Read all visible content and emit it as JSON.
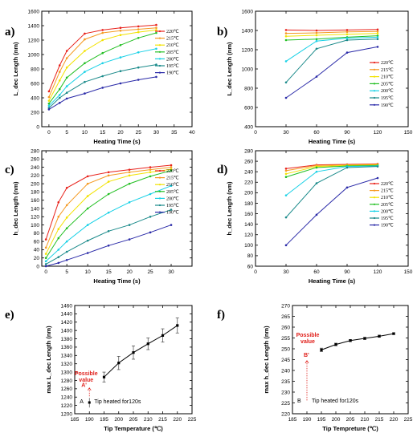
{
  "chart_data": [
    {
      "id": "a",
      "panel_label": "a)",
      "type": "line",
      "xlabel": "Heating Time (s)",
      "ylabel": "L_dec Length (nm)",
      "xlim": [
        -2,
        40
      ],
      "ylim": [
        0,
        1600
      ],
      "xticks": [
        0,
        5,
        10,
        15,
        20,
        25,
        30,
        35,
        40
      ],
      "yticks": [
        0,
        200,
        400,
        600,
        800,
        1000,
        1200,
        1400,
        1600
      ],
      "legend_position": "right",
      "series": [
        {
          "name": "220℃",
          "color": "#e8221b",
          "x": [
            0,
            3,
            5,
            10,
            15,
            20,
            25,
            30
          ],
          "y": [
            490,
            850,
            1050,
            1290,
            1340,
            1370,
            1390,
            1410
          ]
        },
        {
          "name": "215℃",
          "color": "#f59a23",
          "x": [
            0,
            3,
            5,
            10,
            15,
            20,
            25,
            30
          ],
          "y": [
            410,
            760,
            950,
            1210,
            1300,
            1330,
            1350,
            1370
          ]
        },
        {
          "name": "210℃",
          "color": "#f2e200",
          "x": [
            0,
            3,
            5,
            10,
            15,
            20,
            25,
            30
          ],
          "y": [
            360,
            640,
            820,
            1050,
            1200,
            1270,
            1310,
            1340
          ]
        },
        {
          "name": "205℃",
          "color": "#22bf22",
          "x": [
            0,
            3,
            5,
            10,
            15,
            20,
            25,
            30
          ],
          "y": [
            320,
            520,
            680,
            880,
            1020,
            1130,
            1230,
            1300
          ]
        },
        {
          "name": "200℃",
          "color": "#19d1e6",
          "x": [
            0,
            3,
            5,
            10,
            15,
            20,
            25,
            30
          ],
          "y": [
            290,
            440,
            560,
            760,
            880,
            960,
            1030,
            1080
          ]
        },
        {
          "name": "195℃",
          "color": "#1a8a8a",
          "x": [
            0,
            3,
            5,
            10,
            15,
            20,
            25,
            30
          ],
          "y": [
            260,
            400,
            470,
            620,
            700,
            770,
            820,
            860
          ]
        },
        {
          "name": "190℃",
          "color": "#2a2aa8",
          "x": [
            0,
            3,
            5,
            10,
            15,
            20,
            25,
            30
          ],
          "y": [
            240,
            330,
            390,
            460,
            540,
            600,
            650,
            690
          ]
        }
      ]
    },
    {
      "id": "b",
      "panel_label": "b)",
      "type": "line",
      "xlabel": "Heating Time (s)",
      "ylabel": "L_dec Length (nm)",
      "xlim": [
        0,
        150
      ],
      "ylim": [
        400,
        1600
      ],
      "xticks": [
        0,
        30,
        60,
        90,
        120,
        150
      ],
      "yticks": [
        400,
        600,
        800,
        1000,
        1200,
        1400,
        1600
      ],
      "legend_position": "right",
      "series": [
        {
          "name": "220℃",
          "color": "#e8221b",
          "x": [
            30,
            60,
            90,
            120
          ],
          "y": [
            1405,
            1400,
            1405,
            1410
          ]
        },
        {
          "name": "215℃",
          "color": "#f59a23",
          "x": [
            30,
            60,
            90,
            120
          ],
          "y": [
            1370,
            1375,
            1385,
            1390
          ]
        },
        {
          "name": "210℃",
          "color": "#f2e200",
          "x": [
            30,
            60,
            90,
            120
          ],
          "y": [
            1340,
            1350,
            1360,
            1370
          ]
        },
        {
          "name": "205℃",
          "color": "#22bf22",
          "x": [
            30,
            60,
            90,
            120
          ],
          "y": [
            1300,
            1310,
            1330,
            1345
          ]
        },
        {
          "name": "200℃",
          "color": "#19d1e6",
          "x": [
            30,
            60,
            90,
            120
          ],
          "y": [
            1080,
            1290,
            1320,
            1330
          ]
        },
        {
          "name": "195℃",
          "color": "#1a8a8a",
          "x": [
            30,
            60,
            90,
            120
          ],
          "y": [
            860,
            1210,
            1300,
            1310
          ]
        },
        {
          "name": "190℃",
          "color": "#2a2aa8",
          "x": [
            30,
            60,
            90,
            120
          ],
          "y": [
            700,
            920,
            1170,
            1230
          ]
        }
      ]
    },
    {
      "id": "c",
      "panel_label": "c)",
      "type": "line",
      "xlabel": "Heating Time (s)",
      "ylabel": "h_dec Length (nm)",
      "xlim": [
        -1,
        35
      ],
      "ylim": [
        0,
        280
      ],
      "xticks": [
        0,
        5,
        10,
        15,
        20,
        25,
        30
      ],
      "yticks": [
        0,
        20,
        40,
        60,
        80,
        100,
        120,
        140,
        160,
        180,
        200,
        220,
        240,
        260,
        280
      ],
      "legend_position": "right",
      "series": [
        {
          "name": "220℃",
          "color": "#e8221b",
          "x": [
            0,
            3,
            5,
            10,
            15,
            20,
            25,
            30
          ],
          "y": [
            65,
            155,
            190,
            218,
            228,
            234,
            240,
            245
          ]
        },
        {
          "name": "215℃",
          "color": "#f59a23",
          "x": [
            0,
            3,
            5,
            10,
            15,
            20,
            25,
            30
          ],
          "y": [
            45,
            120,
            148,
            200,
            220,
            228,
            234,
            240
          ]
        },
        {
          "name": "210℃",
          "color": "#f2e200",
          "x": [
            0,
            3,
            5,
            10,
            15,
            20,
            25,
            30
          ],
          "y": [
            30,
            90,
            118,
            170,
            205,
            220,
            228,
            235
          ]
        },
        {
          "name": "205℃",
          "color": "#22bf22",
          "x": [
            0,
            3,
            5,
            10,
            15,
            20,
            25,
            30
          ],
          "y": [
            20,
            68,
            92,
            140,
            175,
            200,
            218,
            232
          ]
        },
        {
          "name": "200℃",
          "color": "#19d1e6",
          "x": [
            0,
            3,
            5,
            10,
            15,
            20,
            25,
            30
          ],
          "y": [
            12,
            40,
            60,
            100,
            130,
            155,
            175,
            195
          ]
        },
        {
          "name": "195℃",
          "color": "#1a8a8a",
          "x": [
            0,
            3,
            5,
            10,
            15,
            20,
            25,
            30
          ],
          "y": [
            5,
            22,
            35,
            62,
            85,
            100,
            120,
            137
          ]
        },
        {
          "name": "190℃",
          "color": "#2a2aa8",
          "x": [
            0,
            3,
            5,
            10,
            15,
            20,
            25,
            30
          ],
          "y": [
            0,
            8,
            15,
            32,
            50,
            65,
            82,
            100
          ]
        }
      ]
    },
    {
      "id": "d",
      "panel_label": "d)",
      "type": "line",
      "xlabel": "Heating Time (s)",
      "ylabel": "h_dec Length (nm)",
      "xlim": [
        0,
        150
      ],
      "ylim": [
        60,
        280
      ],
      "xticks": [
        0,
        30,
        60,
        90,
        120,
        150
      ],
      "yticks": [
        60,
        80,
        100,
        120,
        140,
        160,
        180,
        200,
        220,
        240,
        260,
        280
      ],
      "legend_position": "right",
      "series": [
        {
          "name": "220℃",
          "color": "#e8221b",
          "x": [
            30,
            60,
            90,
            120
          ],
          "y": [
            246,
            253,
            254,
            255
          ]
        },
        {
          "name": "215℃",
          "color": "#f59a23",
          "x": [
            30,
            60,
            90,
            120
          ],
          "y": [
            242,
            252,
            253,
            254
          ]
        },
        {
          "name": "210℃",
          "color": "#f2e200",
          "x": [
            30,
            60,
            90,
            120
          ],
          "y": [
            236,
            250,
            252,
            253
          ]
        },
        {
          "name": "205℃",
          "color": "#22bf22",
          "x": [
            30,
            60,
            90,
            120
          ],
          "y": [
            230,
            248,
            251,
            252
          ]
        },
        {
          "name": "200℃",
          "color": "#19d1e6",
          "x": [
            30,
            60,
            90,
            120
          ],
          "y": [
            195,
            240,
            250,
            251
          ]
        },
        {
          "name": "195℃",
          "color": "#1a8a8a",
          "x": [
            30,
            60,
            90,
            120
          ],
          "y": [
            153,
            218,
            248,
            250
          ]
        },
        {
          "name": "190℃",
          "color": "#2a2aa8",
          "x": [
            30,
            60,
            90,
            120
          ],
          "y": [
            100,
            158,
            210,
            228
          ]
        }
      ]
    },
    {
      "id": "e",
      "panel_label": "e)",
      "type": "line",
      "xlabel": "Tip Temperature (℃)",
      "ylabel": "max L_dec Length (nm)",
      "xlim": [
        185,
        225
      ],
      "ylim": [
        1200,
        1460
      ],
      "xticks": [
        185,
        190,
        195,
        200,
        205,
        210,
        215,
        220,
        225
      ],
      "yticks": [
        1200,
        1220,
        1240,
        1260,
        1280,
        1300,
        1320,
        1340,
        1360,
        1380,
        1400,
        1420,
        1440,
        1460
      ],
      "series": [
        {
          "x": [
            195,
            200,
            205,
            210,
            215,
            220
          ],
          "y": [
            1288,
            1322,
            1347,
            1368,
            1388,
            1412
          ],
          "err": [
            12,
            16,
            16,
            14,
            16,
            18
          ]
        }
      ],
      "annotations": {
        "possible": "Possible value",
        "marker": "A'",
        "point": "A",
        "note": "Tip heated for120s"
      }
    },
    {
      "id": "f",
      "panel_label": "f)",
      "type": "line",
      "xlabel": "Tip Tempreture (℃)",
      "ylabel": "max h_dec Length (nm)",
      "xlim": [
        185,
        225
      ],
      "ylim": [
        220,
        270
      ],
      "xticks": [
        185,
        190,
        195,
        200,
        205,
        210,
        215,
        220,
        225
      ],
      "yticks": [
        220,
        225,
        230,
        235,
        240,
        245,
        250,
        255,
        260,
        265,
        270
      ],
      "series": [
        {
          "x": [
            195,
            200,
            205,
            210,
            215,
            220
          ],
          "y": [
            249.5,
            252,
            253.8,
            254.8,
            255.8,
            257
          ],
          "err": [
            0.8,
            0.6,
            0.5,
            0.5,
            0.5,
            0.4
          ]
        }
      ],
      "annotations": {
        "possible": "Possible value",
        "marker": "B'",
        "point": "B",
        "note": "Tip heated for120s"
      }
    }
  ]
}
